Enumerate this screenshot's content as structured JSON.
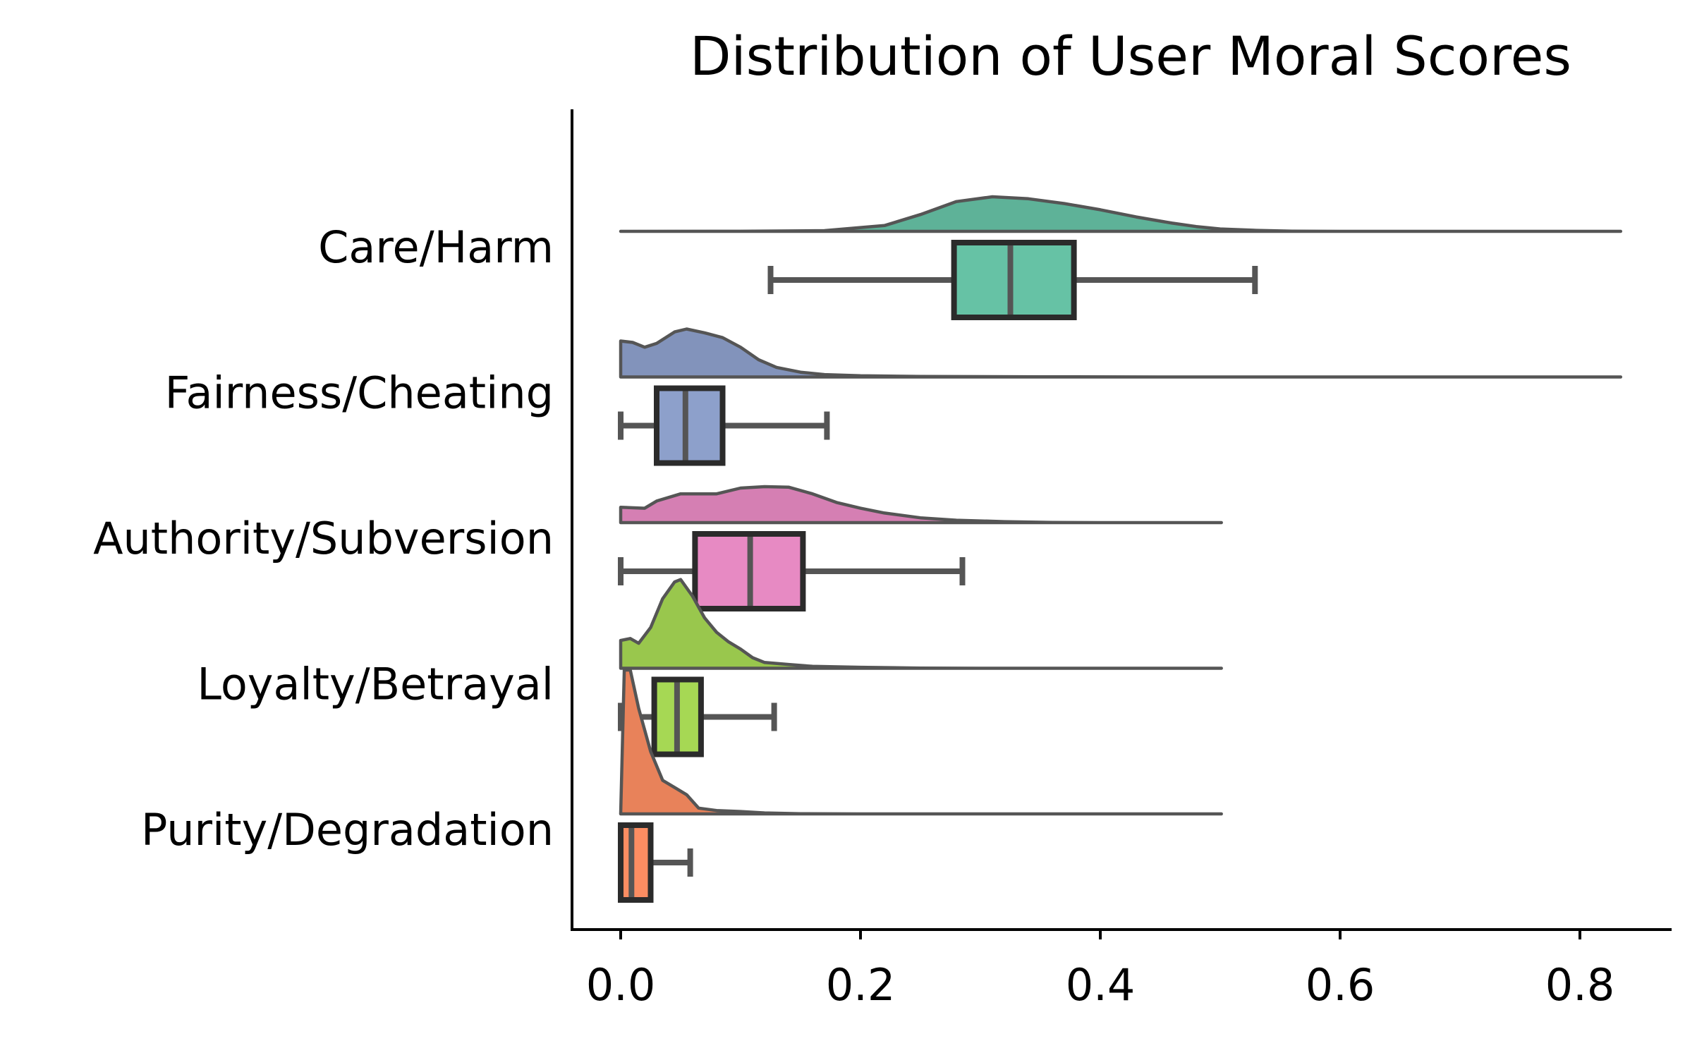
{
  "chart_data": {
    "type": "raincloud",
    "title": "Distribution of User Moral Scores",
    "xlabel": "",
    "ylabel": "",
    "xlim": [
      -0.04,
      0.875
    ],
    "x_ticks": [
      0.0,
      0.2,
      0.4,
      0.6,
      0.8
    ],
    "x_tick_labels": [
      "0.0",
      "0.2",
      "0.4",
      "0.6",
      "0.8"
    ],
    "grid": false,
    "categories": [
      "Care/Harm",
      "Fairness/Cheating",
      "Authority/Subversion",
      "Loyalty/Betrayal",
      "Purity/Degradation"
    ],
    "series": [
      {
        "name": "Care/Harm",
        "color": "#66c2a5",
        "box": {
          "whislo": 0.125,
          "q1": 0.278,
          "median": 0.325,
          "q3": 0.378,
          "whishi": 0.529
        },
        "density_range": [
          0.0,
          0.834
        ],
        "density": [
          [
            0.0,
            0.0
          ],
          [
            0.1,
            0.001
          ],
          [
            0.17,
            0.015
          ],
          [
            0.22,
            0.12
          ],
          [
            0.25,
            0.35
          ],
          [
            0.28,
            0.62
          ],
          [
            0.31,
            0.72
          ],
          [
            0.34,
            0.68
          ],
          [
            0.37,
            0.58
          ],
          [
            0.4,
            0.45
          ],
          [
            0.43,
            0.3
          ],
          [
            0.46,
            0.17
          ],
          [
            0.48,
            0.1
          ],
          [
            0.5,
            0.05
          ],
          [
            0.53,
            0.02
          ],
          [
            0.56,
            0.005
          ],
          [
            0.6,
            0.0
          ],
          [
            0.834,
            0.0
          ]
        ]
      },
      {
        "name": "Fairness/Cheating",
        "color": "#8da0cb",
        "box": {
          "whislo": 0.0,
          "q1": 0.03,
          "median": 0.054,
          "q3": 0.085,
          "whishi": 0.172
        },
        "density_range": [
          0.0,
          0.834
        ],
        "density": [
          [
            0.0,
            0.75
          ],
          [
            0.01,
            0.72
          ],
          [
            0.02,
            0.62
          ],
          [
            0.03,
            0.7
          ],
          [
            0.045,
            0.94
          ],
          [
            0.055,
            1.0
          ],
          [
            0.07,
            0.92
          ],
          [
            0.085,
            0.82
          ],
          [
            0.1,
            0.62
          ],
          [
            0.115,
            0.36
          ],
          [
            0.13,
            0.2
          ],
          [
            0.15,
            0.1
          ],
          [
            0.17,
            0.05
          ],
          [
            0.2,
            0.025
          ],
          [
            0.25,
            0.012
          ],
          [
            0.35,
            0.004
          ],
          [
            0.45,
            0.0
          ],
          [
            0.834,
            0.0
          ]
        ]
      },
      {
        "name": "Authority/Subversion",
        "color": "#e78ac3",
        "box": {
          "whislo": 0.0,
          "q1": 0.062,
          "median": 0.108,
          "q3": 0.152,
          "whishi": 0.285
        },
        "density_range": [
          0.0,
          0.501
        ],
        "density": [
          [
            0.0,
            0.32
          ],
          [
            0.02,
            0.3
          ],
          [
            0.03,
            0.45
          ],
          [
            0.05,
            0.6
          ],
          [
            0.08,
            0.6
          ],
          [
            0.1,
            0.72
          ],
          [
            0.12,
            0.75
          ],
          [
            0.14,
            0.74
          ],
          [
            0.16,
            0.6
          ],
          [
            0.18,
            0.42
          ],
          [
            0.2,
            0.3
          ],
          [
            0.22,
            0.2
          ],
          [
            0.25,
            0.1
          ],
          [
            0.28,
            0.05
          ],
          [
            0.32,
            0.02
          ],
          [
            0.36,
            0.005
          ],
          [
            0.4,
            0.0
          ],
          [
            0.501,
            0.0
          ]
        ]
      },
      {
        "name": "Loyalty/Betrayal",
        "color": "#a6d854",
        "box": {
          "whislo": 0.0,
          "q1": 0.028,
          "median": 0.047,
          "q3": 0.067,
          "whishi": 0.128
        },
        "density_range": [
          0.0,
          0.501
        ],
        "density": [
          [
            0.0,
            0.58
          ],
          [
            0.008,
            0.62
          ],
          [
            0.015,
            0.52
          ],
          [
            0.025,
            0.85
          ],
          [
            0.035,
            1.45
          ],
          [
            0.045,
            1.8
          ],
          [
            0.05,
            1.85
          ],
          [
            0.06,
            1.5
          ],
          [
            0.07,
            1.05
          ],
          [
            0.08,
            0.75
          ],
          [
            0.09,
            0.55
          ],
          [
            0.1,
            0.4
          ],
          [
            0.11,
            0.22
          ],
          [
            0.12,
            0.12
          ],
          [
            0.14,
            0.08
          ],
          [
            0.16,
            0.04
          ],
          [
            0.2,
            0.02
          ],
          [
            0.25,
            0.005
          ],
          [
            0.3,
            0.0
          ],
          [
            0.501,
            0.0
          ]
        ]
      },
      {
        "name": "Purity/Degradation",
        "color": "#fc8d62",
        "box": {
          "whislo": 0.0,
          "q1": 0.0,
          "median": 0.009,
          "q3": 0.025,
          "whishi": 0.058
        },
        "density_range": [
          0.0,
          0.501
        ],
        "density": [
          [
            0.0,
            0.0
          ],
          [
            0.003,
            3.0
          ],
          [
            0.008,
            3.0
          ],
          [
            0.015,
            2.2
          ],
          [
            0.025,
            1.3
          ],
          [
            0.035,
            0.7
          ],
          [
            0.045,
            0.55
          ],
          [
            0.055,
            0.4
          ],
          [
            0.065,
            0.12
          ],
          [
            0.08,
            0.07
          ],
          [
            0.1,
            0.05
          ],
          [
            0.12,
            0.02
          ],
          [
            0.15,
            0.005
          ],
          [
            0.2,
            0.0
          ],
          [
            0.501,
            0.0
          ]
        ]
      }
    ]
  }
}
